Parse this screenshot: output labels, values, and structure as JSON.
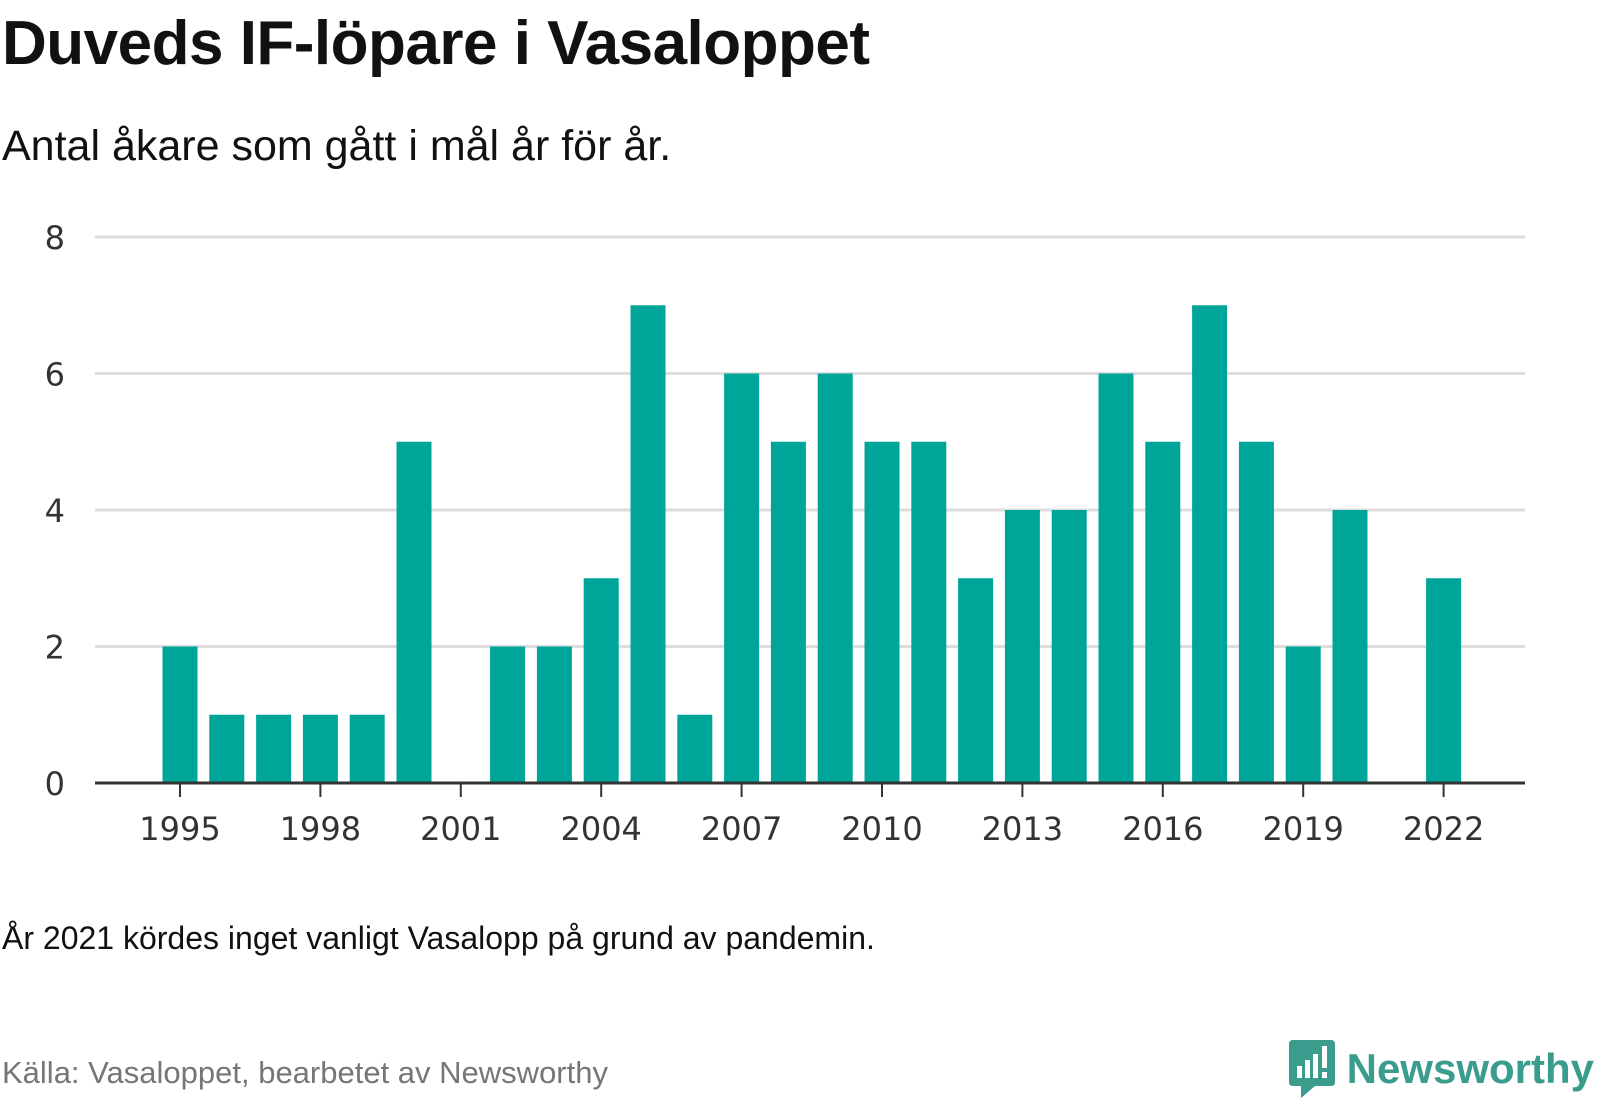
{
  "header": {
    "title": "Duveds IF-löpare i Vasaloppet",
    "subtitle": "Antal åkare som gått i mål år för år."
  },
  "footer": {
    "note": "År 2021 kördes inget vanligt Vasalopp på grund av pandemin.",
    "source": "Källa: Vasaloppet, bearbetet av Newsworthy",
    "brand": "Newsworthy"
  },
  "colors": {
    "bar": "#00a59a",
    "grid": "#dddddd",
    "axis": "#333333",
    "brand": "#3a9c8c"
  },
  "chart_data": {
    "type": "bar",
    "title": "Duveds IF-löpare i Vasaloppet",
    "subtitle": "Antal åkare som gått i mål år för år.",
    "xlabel": "",
    "ylabel": "",
    "ylim": [
      0,
      8
    ],
    "yticks": [
      "0",
      "2",
      "4",
      "6",
      "8"
    ],
    "xticks": [
      "1995",
      "1998",
      "2001",
      "2004",
      "2007",
      "2010",
      "2013",
      "2016",
      "2019",
      "2022"
    ],
    "grid": true,
    "legend": "none",
    "categories": [
      "1995",
      "1996",
      "1997",
      "1998",
      "1999",
      "2000",
      "2001",
      "2002",
      "2003",
      "2004",
      "2005",
      "2006",
      "2007",
      "2008",
      "2009",
      "2010",
      "2011",
      "2012",
      "2013",
      "2014",
      "2015",
      "2016",
      "2017",
      "2018",
      "2019",
      "2020",
      "2021",
      "2022"
    ],
    "values": [
      2,
      1,
      1,
      1,
      1,
      5,
      0,
      2,
      2,
      3,
      7,
      1,
      6,
      5,
      6,
      5,
      5,
      3,
      4,
      4,
      6,
      5,
      7,
      5,
      2,
      4,
      null,
      3
    ]
  }
}
